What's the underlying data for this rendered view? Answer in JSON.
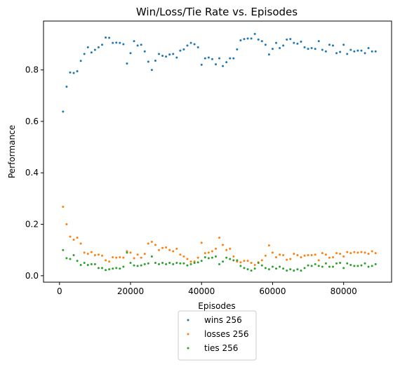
{
  "chart_data": {
    "type": "scatter",
    "title": "Win/Loss/Tie Rate vs. Episodes",
    "xlabel": "Episodes",
    "ylabel": "Performance",
    "xlim": [
      -4500,
      93500
    ],
    "ylim": [
      -0.025,
      0.99
    ],
    "xticks": [
      0,
      20000,
      40000,
      60000,
      80000
    ],
    "xtick_labels": [
      "0",
      "20000",
      "40000",
      "60000",
      "80000"
    ],
    "yticks": [
      0.0,
      0.2,
      0.4,
      0.6,
      0.8
    ],
    "ytick_labels": [
      "0.0",
      "0.2",
      "0.4",
      "0.6",
      "0.8"
    ],
    "grid": false,
    "legend_position": "below the plot, centered",
    "x": [
      1000,
      2000,
      3000,
      4000,
      5000,
      6000,
      7000,
      8000,
      9000,
      10000,
      11000,
      12000,
      13000,
      14000,
      15000,
      16000,
      17000,
      18000,
      19000,
      20000,
      21000,
      22000,
      23000,
      24000,
      25000,
      26000,
      27000,
      28000,
      29000,
      30000,
      31000,
      32000,
      33000,
      34000,
      35000,
      36000,
      37000,
      38000,
      39000,
      40000,
      41000,
      42000,
      43000,
      44000,
      45000,
      46000,
      47000,
      48000,
      49000,
      50000,
      51000,
      52000,
      53000,
      54000,
      55000,
      56000,
      57000,
      58000,
      59000,
      60000,
      61000,
      62000,
      63000,
      64000,
      65000,
      66000,
      67000,
      68000,
      69000,
      70000,
      71000,
      72000,
      73000,
      74000,
      75000,
      76000,
      77000,
      78000,
      79000,
      80000,
      81000,
      82000,
      83000,
      84000,
      85000,
      86000,
      87000,
      88000,
      89000
    ],
    "series": [
      {
        "name": "wins 256",
        "color": "#1f77b4",
        "values": [
          0.638,
          0.735,
          0.79,
          0.788,
          0.795,
          0.835,
          0.862,
          0.888,
          0.868,
          0.878,
          0.888,
          0.898,
          0.926,
          0.925,
          0.905,
          0.906,
          0.905,
          0.9,
          0.825,
          0.865,
          0.912,
          0.895,
          0.898,
          0.872,
          0.832,
          0.8,
          0.836,
          0.862,
          0.855,
          0.852,
          0.86,
          0.862,
          0.848,
          0.875,
          0.88,
          0.895,
          0.905,
          0.9,
          0.888,
          0.82,
          0.845,
          0.848,
          0.842,
          0.822,
          0.845,
          0.815,
          0.83,
          0.845,
          0.845,
          0.88,
          0.915,
          0.92,
          0.922,
          0.922,
          0.94,
          0.918,
          0.912,
          0.898,
          0.86,
          0.882,
          0.905,
          0.885,
          0.895,
          0.918,
          0.92,
          0.905,
          0.902,
          0.91,
          0.888,
          0.882,
          0.885,
          0.882,
          0.912,
          0.878,
          0.872,
          0.898,
          0.895,
          0.865,
          0.87,
          0.898,
          0.862,
          0.878,
          0.872,
          0.875,
          0.875,
          0.865,
          0.885,
          0.872,
          0.872
        ]
      },
      {
        "name": "losses 256",
        "color": "#ff7f0e",
        "values": [
          0.268,
          0.2,
          0.152,
          0.14,
          0.148,
          0.125,
          0.09,
          0.085,
          0.092,
          0.08,
          0.082,
          0.078,
          0.06,
          0.055,
          0.072,
          0.07,
          0.072,
          0.07,
          0.095,
          0.09,
          0.068,
          0.082,
          0.07,
          0.085,
          0.125,
          0.132,
          0.12,
          0.1,
          0.108,
          0.11,
          0.1,
          0.095,
          0.105,
          0.082,
          0.075,
          0.065,
          0.055,
          0.055,
          0.07,
          0.128,
          0.088,
          0.09,
          0.095,
          0.105,
          0.148,
          0.12,
          0.1,
          0.105,
          0.075,
          0.055,
          0.052,
          0.058,
          0.058,
          0.05,
          0.042,
          0.052,
          0.06,
          0.078,
          0.118,
          0.09,
          0.072,
          0.082,
          0.08,
          0.062,
          0.065,
          0.085,
          0.08,
          0.072,
          0.078,
          0.08,
          0.08,
          0.082,
          0.06,
          0.088,
          0.082,
          0.07,
          0.072,
          0.088,
          0.085,
          0.075,
          0.092,
          0.088,
          0.092,
          0.09,
          0.092,
          0.09,
          0.085,
          0.095,
          0.088
        ]
      },
      {
        "name": "ties 256",
        "color": "#2ca02c",
        "values": [
          0.1,
          0.068,
          0.065,
          0.08,
          0.058,
          0.042,
          0.05,
          0.042,
          0.045,
          0.045,
          0.03,
          0.03,
          0.022,
          0.025,
          0.028,
          0.03,
          0.028,
          0.035,
          0.09,
          0.05,
          0.04,
          0.038,
          0.04,
          0.045,
          0.048,
          0.075,
          0.05,
          0.045,
          0.05,
          0.045,
          0.05,
          0.045,
          0.05,
          0.048,
          0.048,
          0.04,
          0.045,
          0.05,
          0.052,
          0.058,
          0.072,
          0.068,
          0.07,
          0.075,
          0.045,
          0.055,
          0.07,
          0.065,
          0.06,
          0.06,
          0.038,
          0.03,
          0.025,
          0.02,
          0.028,
          0.05,
          0.04,
          0.03,
          0.025,
          0.035,
          0.028,
          0.035,
          0.028,
          0.02,
          0.025,
          0.02,
          0.025,
          0.02,
          0.03,
          0.04,
          0.038,
          0.045,
          0.038,
          0.035,
          0.048,
          0.035,
          0.035,
          0.048,
          0.05,
          0.03,
          0.048,
          0.042,
          0.038,
          0.038,
          0.04,
          0.048,
          0.035,
          0.038,
          0.045
        ]
      }
    ]
  }
}
